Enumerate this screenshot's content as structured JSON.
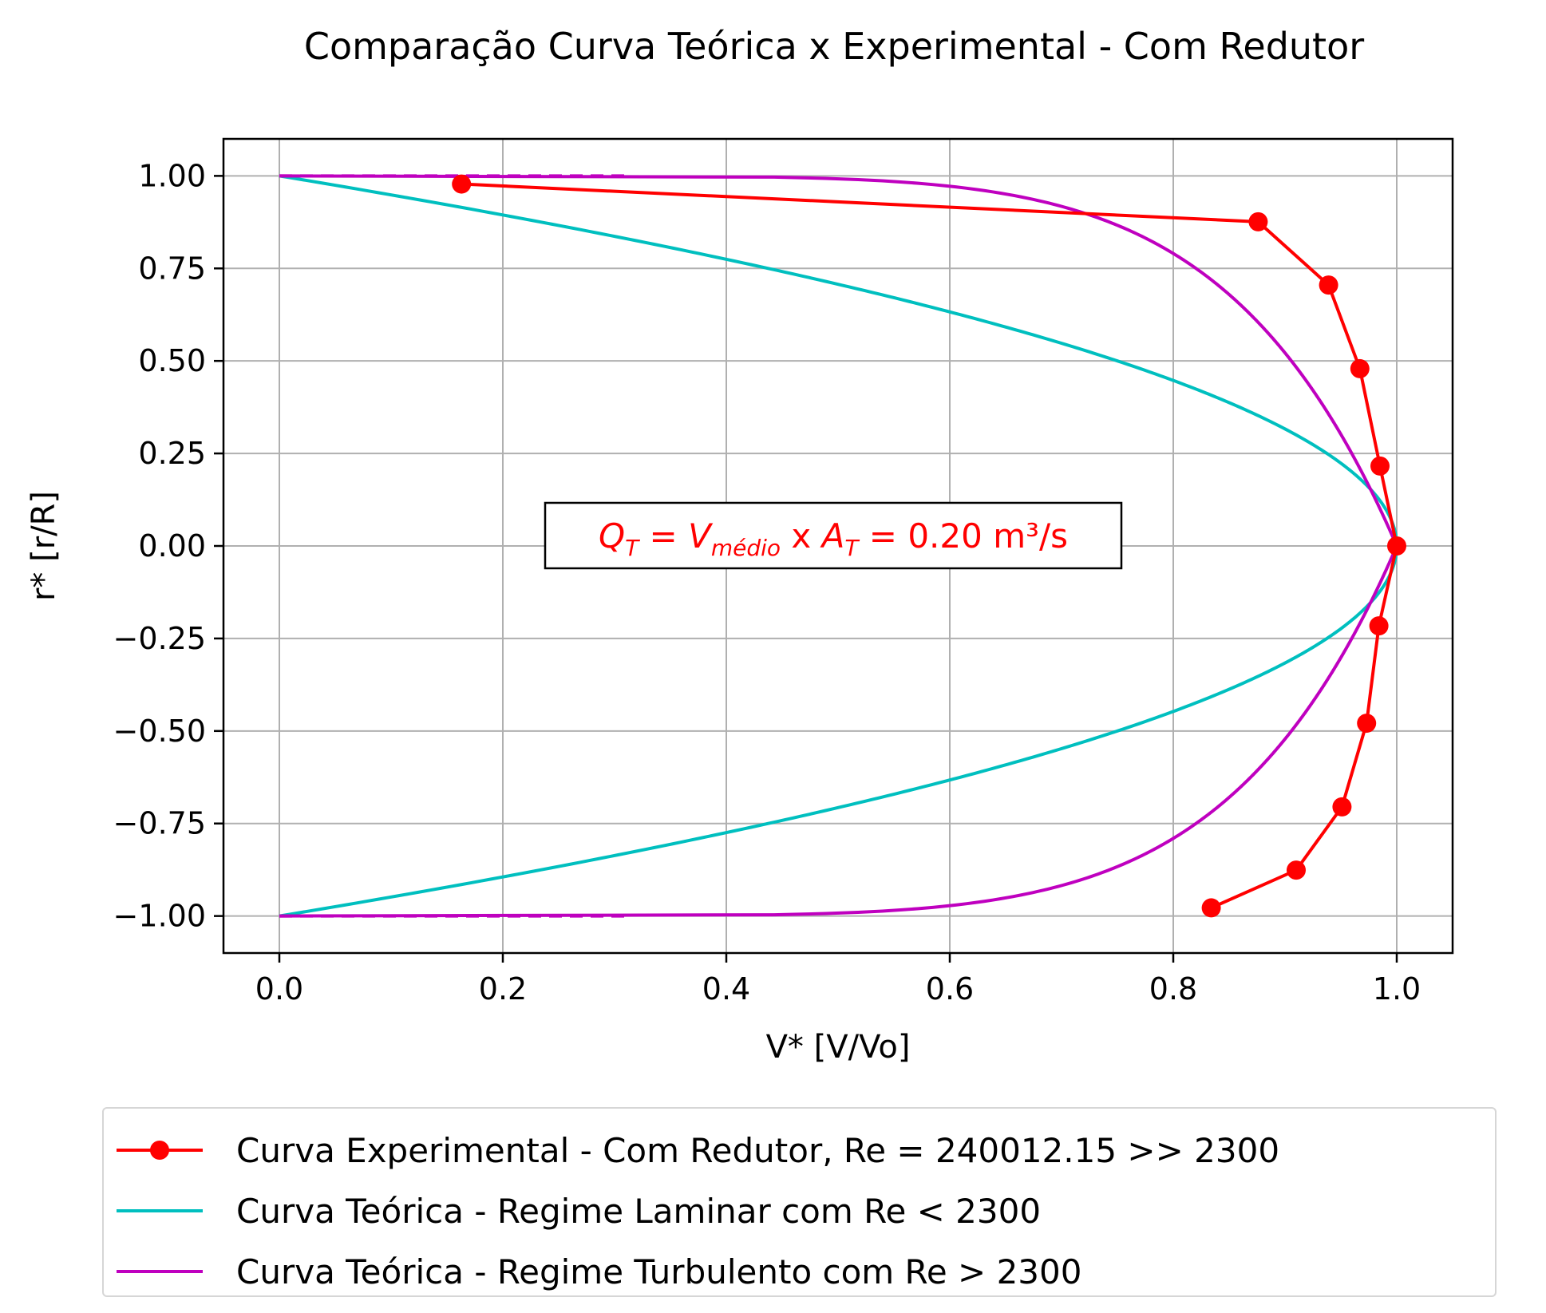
{
  "chart_data": {
    "type": "line",
    "title": "Comparação Curva Teórica x Experimental - Com Redutor",
    "xlabel": "V* [V/Vo]",
    "ylabel": "r* [r/R]",
    "xlim": [
      -0.05,
      1.05
    ],
    "ylim": [
      -1.1,
      1.1
    ],
    "xticks": [
      0.0,
      0.2,
      0.4,
      0.6,
      0.8,
      1.0
    ],
    "xtick_labels": [
      "0.0",
      "0.2",
      "0.4",
      "0.6",
      "0.8",
      "1.0"
    ],
    "yticks": [
      1.0,
      0.75,
      0.5,
      0.25,
      0.0,
      -0.25,
      -0.5,
      -0.75,
      -1.0
    ],
    "ytick_labels": [
      "1.00",
      "0.75",
      "0.50",
      "0.25",
      "0.00",
      "−0.25",
      "−0.50",
      "−0.75",
      "−1.00"
    ],
    "grid": true,
    "legend_position": "below",
    "annotation": {
      "q": "Q",
      "q_sub": "T",
      "eq1": " = ",
      "v": "V",
      "v_sub": "médio",
      "mid": " x ",
      "a": "A",
      "a_sub": "T",
      "eq2": " = ",
      "value": "0.20 m³/s",
      "x": 0.5,
      "y": 0.0
    },
    "series": [
      {
        "name": "Curva Experimental - Com Redutor, Re = 240012.15 >> 2300",
        "color": "#ff0000",
        "style": "line-marker",
        "x": [
          0.163,
          0.876,
          0.939,
          0.967,
          0.985,
          1.0,
          0.984,
          0.973,
          0.951,
          0.91,
          0.834
        ],
        "y": [
          0.978,
          0.876,
          0.705,
          0.479,
          0.216,
          0.0,
          -0.216,
          -0.479,
          -0.705,
          -0.876,
          -0.978
        ]
      },
      {
        "name": "Curva Teórica - Regime Laminar com Re < 2300",
        "color": "#00bfbf",
        "style": "line",
        "function": "laminar"
      },
      {
        "name": "Curva Teórica - Regime Turbulento com Re > 2300",
        "color": "#bf00bf",
        "style": "line",
        "function": "turbulent"
      }
    ]
  }
}
